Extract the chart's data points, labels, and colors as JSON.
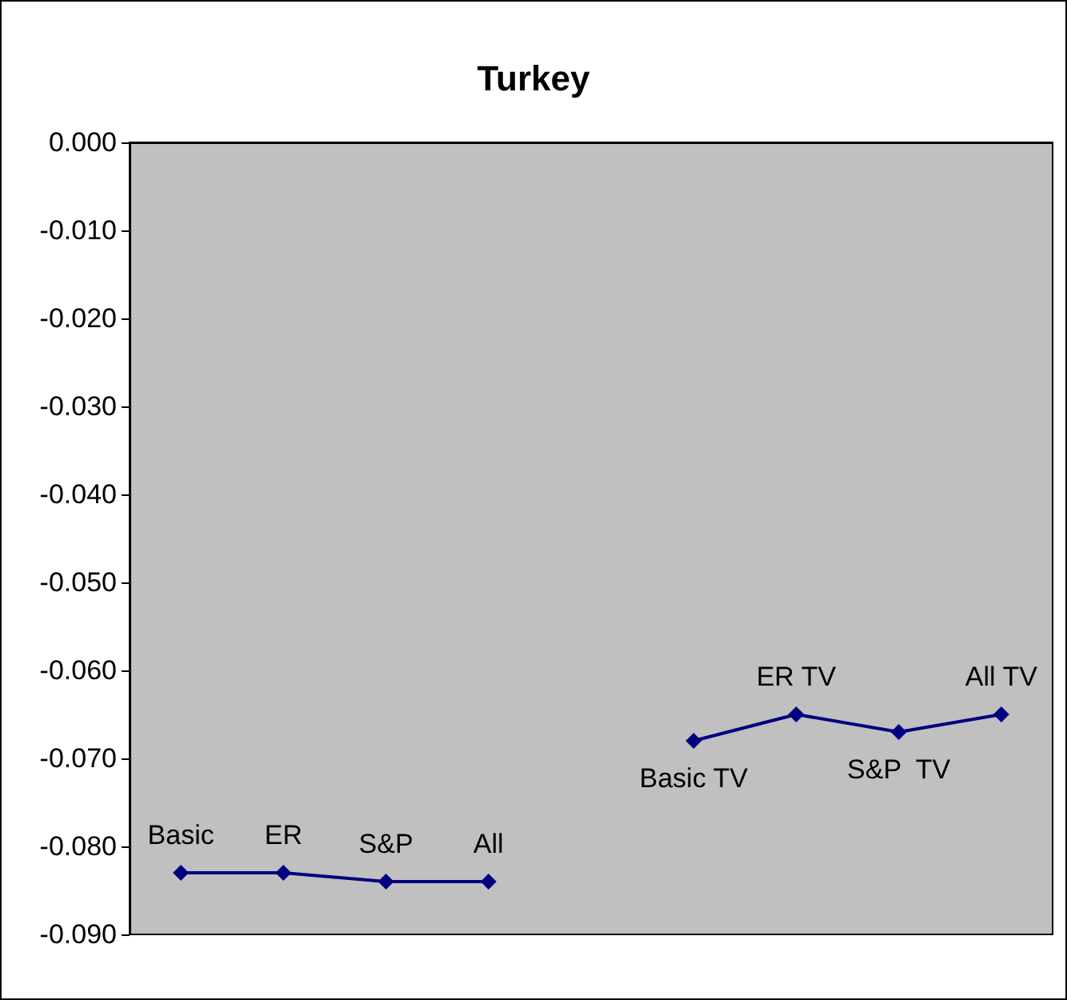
{
  "chart_data": {
    "type": "line",
    "title": "Turkey",
    "categories": [
      null,
      null,
      null,
      null,
      null,
      null,
      null,
      null,
      null
    ],
    "series": [
      {
        "color": "#000080",
        "values": [
          -0.083,
          -0.083,
          -0.084,
          -0.084,
          null,
          null,
          null,
          null,
          null
        ],
        "value_labels": [
          "Basic",
          "ER",
          "S&P",
          "All",
          null,
          null,
          null,
          null,
          null
        ]
      },
      {
        "color": "#000080",
        "values": [
          null,
          null,
          null,
          null,
          null,
          -0.068,
          -0.065,
          -0.067,
          -0.065
        ],
        "value_labels": [
          null,
          null,
          null,
          null,
          null,
          "Basic TV",
          "ER TV",
          "S&P  TV",
          "All TV"
        ]
      }
    ],
    "ylim": [
      -0.09,
      0
    ],
    "yticks": [
      {
        "value": 0,
        "label": "0.000"
      },
      {
        "value": -0.01,
        "label": "-0.010"
      },
      {
        "value": -0.02,
        "label": "-0.020"
      },
      {
        "value": -0.03,
        "label": "-0.030"
      },
      {
        "value": -0.04,
        "label": "-0.040"
      },
      {
        "value": -0.05,
        "label": "-0.050"
      },
      {
        "value": -0.06,
        "label": "-0.060"
      },
      {
        "value": -0.07,
        "label": "-0.070"
      },
      {
        "value": -0.08,
        "label": "-0.080"
      },
      {
        "value": -0.09,
        "label": "-0.090"
      }
    ],
    "grid": false,
    "marker": "diamond",
    "line_style": "solid"
  }
}
